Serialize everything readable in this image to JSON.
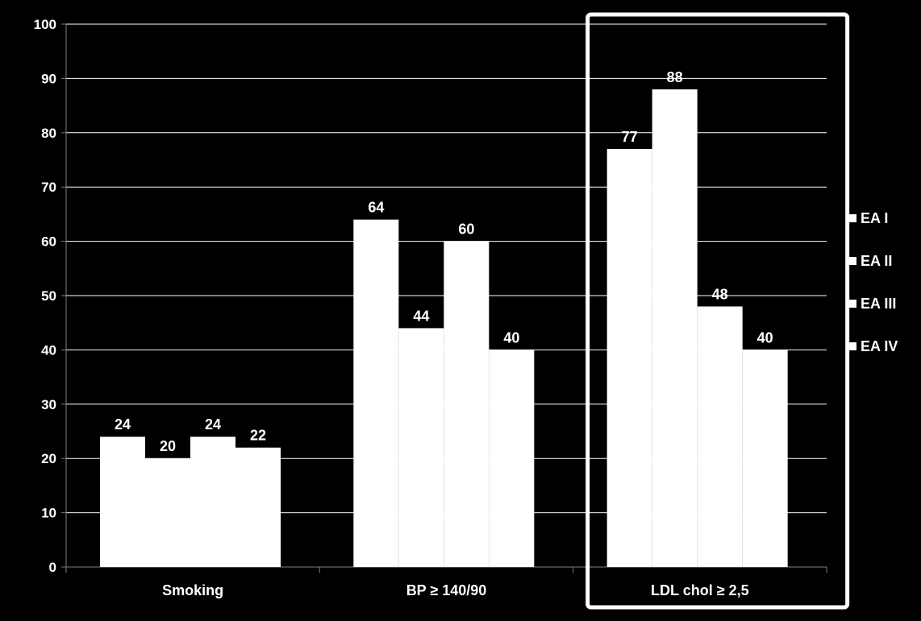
{
  "chart_data": {
    "type": "bar",
    "categories": [
      "Smoking",
      "BP ≥ 140/90",
      "LDL chol ≥ 2,5"
    ],
    "series": [
      {
        "name": "EA I",
        "values": [
          24,
          64,
          77
        ]
      },
      {
        "name": "EA II",
        "values": [
          20,
          44,
          88
        ]
      },
      {
        "name": "EA III",
        "values": [
          24,
          60,
          48
        ]
      },
      {
        "name": "EA IV",
        "values": [
          22,
          40,
          40
        ]
      }
    ],
    "title": "",
    "xlabel": "",
    "ylabel": "",
    "ylim": [
      0,
      100
    ],
    "yticks": [
      0,
      10,
      20,
      30,
      40,
      50,
      60,
      70,
      80,
      90,
      100
    ],
    "grid": true,
    "legend_position": "right",
    "highlighted_category": "LDL chol ≥ 2,5",
    "colors": {
      "background": "#000000",
      "bar": "#ffffff",
      "text": "#ffffff",
      "grid": "#ffffff",
      "axis": "#808080",
      "highlight_box": "#ffffff"
    }
  }
}
